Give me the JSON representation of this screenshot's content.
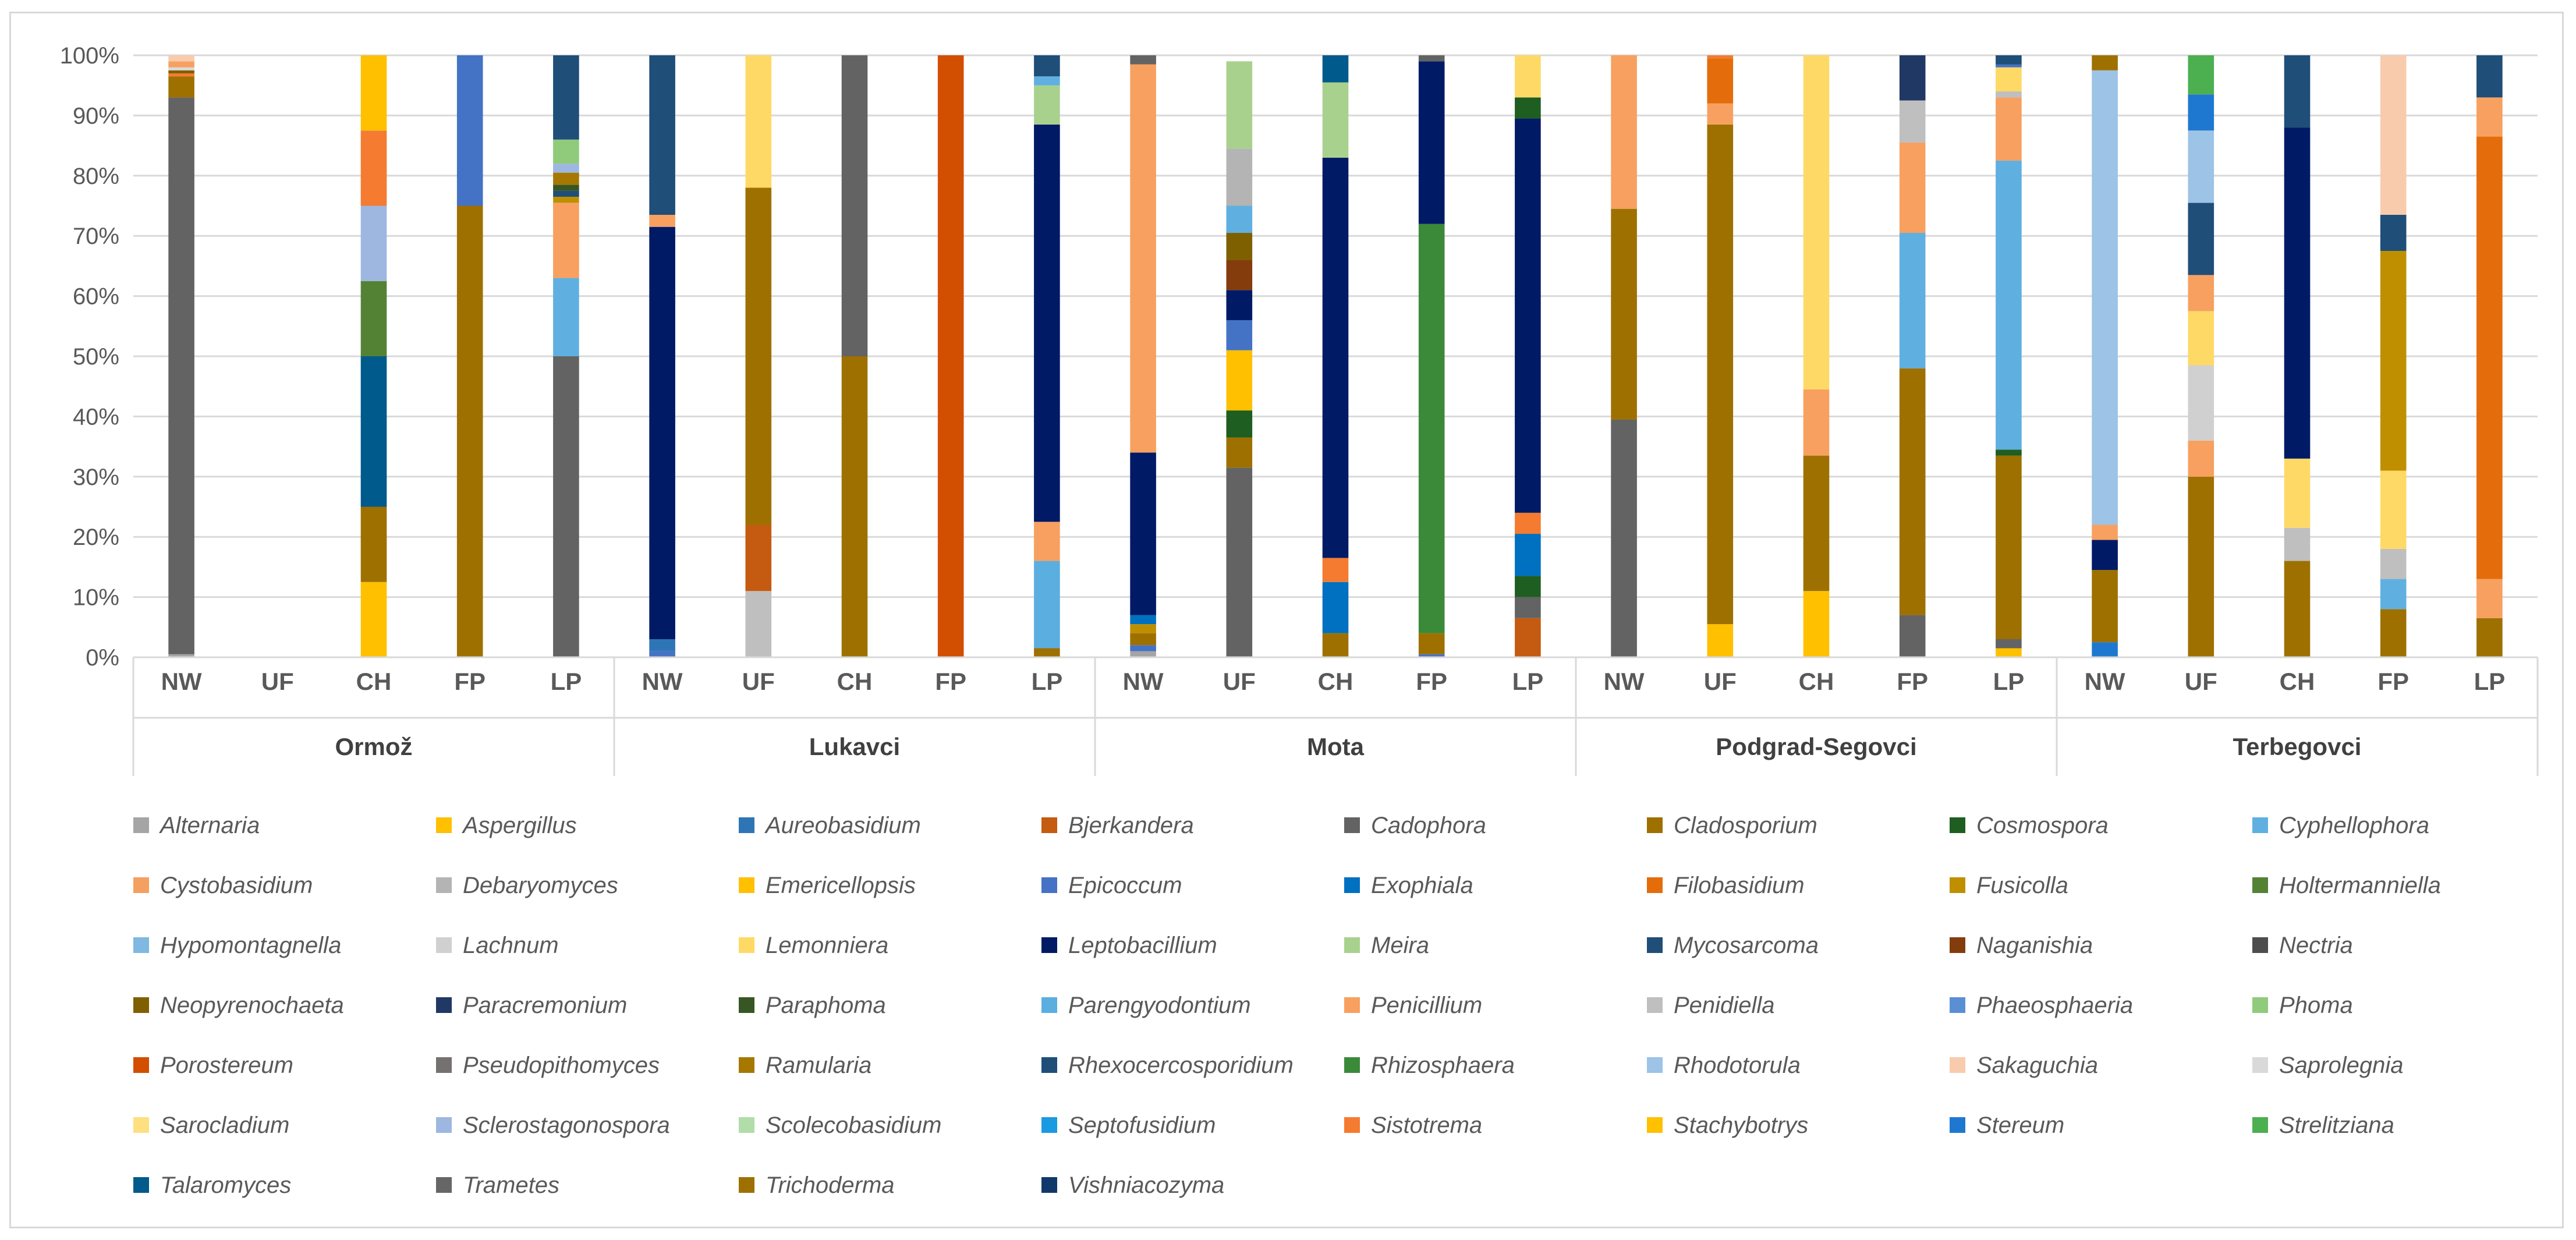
{
  "chart_data": {
    "type": "bar",
    "stacked": true,
    "normalized": true,
    "title": "",
    "xlabel": "",
    "ylabel": "",
    "ylim": [
      0,
      100
    ],
    "y_tick_labels": [
      "0%",
      "10%",
      "20%",
      "30%",
      "40%",
      "50%",
      "60%",
      "70%",
      "80%",
      "90%",
      "100%"
    ],
    "grid": true,
    "legend_position": "bottom",
    "sites": [
      "Ormož",
      "Lukavci",
      "Mota",
      "Podgrad-Segovci",
      "Terbegovci"
    ],
    "categories": [
      "NW",
      "UF",
      "CH",
      "FP",
      "LP"
    ],
    "genera": [
      {
        "name": "Alternaria",
        "color": "#A5A5A5"
      },
      {
        "name": "Aspergillus",
        "color": "#FFC000"
      },
      {
        "name": "Aureobasidium",
        "color": "#2E75B6"
      },
      {
        "name": "Bjerkandera",
        "color": "#C55A11"
      },
      {
        "name": "Cadophora",
        "color": "#636363"
      },
      {
        "name": "Cladosporium",
        "color": "#9E7000"
      },
      {
        "name": "Cosmospora",
        "color": "#1E5E20"
      },
      {
        "name": "Cyphellophora",
        "color": "#5FB0E0"
      },
      {
        "name": "Cystobasidium",
        "color": "#F4A060"
      },
      {
        "name": "Debaryomyces",
        "color": "#B4B4B4"
      },
      {
        "name": "Emericellopsis",
        "color": "#FFC000"
      },
      {
        "name": "Epicoccum",
        "color": "#4472C4"
      },
      {
        "name": "Exophiala",
        "color": "#0070C0"
      },
      {
        "name": "Filobasidium",
        "color": "#E46C0A"
      },
      {
        "name": "Fusicolla",
        "color": "#BF8F00"
      },
      {
        "name": "Holtermanniella",
        "color": "#548235"
      },
      {
        "name": "Hypomontagnella",
        "color": "#7FB8E0"
      },
      {
        "name": "Lachnum",
        "color": "#D0D0D0"
      },
      {
        "name": "Lemonniera",
        "color": "#FFD966"
      },
      {
        "name": "Leptobacillium",
        "color": "#001A66"
      },
      {
        "name": "Meira",
        "color": "#A9D18E"
      },
      {
        "name": "Mycosarcoma",
        "color": "#1F4E79"
      },
      {
        "name": "Naganishia",
        "color": "#843C0C"
      },
      {
        "name": "Nectria",
        "color": "#4D4D4D"
      },
      {
        "name": "Neopyrenochaeta",
        "color": "#7F6000"
      },
      {
        "name": "Paracremonium",
        "color": "#203864"
      },
      {
        "name": "Paraphoma",
        "color": "#375623"
      },
      {
        "name": "Parengyodontium",
        "color": "#5BAEE0"
      },
      {
        "name": "Penicillium",
        "color": "#F8A060"
      },
      {
        "name": "Penidiella",
        "color": "#BFBFBF"
      },
      {
        "name": "Phaeosphaeria",
        "color": "#5B8FD4"
      },
      {
        "name": "Phoma",
        "color": "#8FCB7B"
      },
      {
        "name": "Porostereum",
        "color": "#D24E00"
      },
      {
        "name": "Pseudopithomyces",
        "color": "#767171"
      },
      {
        "name": "Ramularia",
        "color": "#A67800"
      },
      {
        "name": "Rhexocercosporidium",
        "color": "#1F4E79"
      },
      {
        "name": "Rhizosphaera",
        "color": "#3A8A3A"
      },
      {
        "name": "Rhodotorula",
        "color": "#9DC3E6"
      },
      {
        "name": "Sakaguchia",
        "color": "#F8CBAD"
      },
      {
        "name": "Saprolegnia",
        "color": "#D9D9D9"
      },
      {
        "name": "Sarocladium",
        "color": "#FFE080"
      },
      {
        "name": "Sclerostagonospora",
        "color": "#9DB7E0"
      },
      {
        "name": "Scolecobasidium",
        "color": "#B0DDA8"
      },
      {
        "name": "Septofusidium",
        "color": "#1A9AE0"
      },
      {
        "name": "Sistotrema",
        "color": "#F47B30"
      },
      {
        "name": "Stachybotrys",
        "color": "#FFC000"
      },
      {
        "name": "Stereum",
        "color": "#1F78D0"
      },
      {
        "name": "Strelitziana",
        "color": "#4CAF50"
      },
      {
        "name": "Talaromyces",
        "color": "#005A8C"
      },
      {
        "name": "Trametes",
        "color": "#666666"
      },
      {
        "name": "Trichoderma",
        "color": "#9E7000"
      },
      {
        "name": "Vishniacozyma",
        "color": "#10396B"
      }
    ],
    "bars": [
      {
        "site": "Ormož",
        "category": "NW",
        "segments": [
          [
            "Alternaria",
            0.5
          ],
          [
            "Cadophora",
            92.5
          ],
          [
            "Cladosporium",
            3.5
          ],
          [
            "Sistotrema",
            0.5
          ],
          [
            "Neopyrenochaeta",
            0.5
          ],
          [
            "Saprolegnia",
            0.5
          ],
          [
            "Penicillium",
            1
          ],
          [
            "Sakaguchia",
            1
          ]
        ]
      },
      {
        "site": "Ormož",
        "category": "UF",
        "segments": []
      },
      {
        "site": "Ormož",
        "category": "CH",
        "segments": [
          [
            "Aspergillus",
            12.5
          ],
          [
            "Cladosporium",
            12.5
          ],
          [
            "Talaromyces",
            25
          ],
          [
            "Holtermanniella",
            12.5
          ],
          [
            "Sclerostagonospora",
            12.5
          ],
          [
            "Sistotrema",
            12.5
          ],
          [
            "Aspergillus",
            12.5
          ]
        ]
      },
      {
        "site": "Ormož",
        "category": "FP",
        "segments": [
          [
            "Cladosporium",
            75
          ],
          [
            "Epicoccum",
            25
          ]
        ]
      },
      {
        "site": "Ormož",
        "category": "LP",
        "segments": [
          [
            "Cadophora",
            50
          ],
          [
            "Cyphellophora",
            13
          ],
          [
            "Penicillium",
            12.5
          ],
          [
            "Fusicolla",
            1
          ],
          [
            "Mycosarcoma",
            1
          ],
          [
            "Paraphoma",
            1
          ],
          [
            "Ramularia",
            2
          ],
          [
            "Sclerostagonospora",
            1.5
          ],
          [
            "Phoma",
            4
          ],
          [
            "Rhexocercosporidium",
            14
          ]
        ]
      },
      {
        "site": "Lukavci",
        "category": "NW",
        "segments": [
          [
            "Epicoccum",
            1
          ],
          [
            "Aureobasidium",
            2
          ],
          [
            "Leptobacillium",
            68.5
          ],
          [
            "Penicillium",
            2
          ],
          [
            "Mycosarcoma",
            26.5
          ]
        ]
      },
      {
        "site": "Lukavci",
        "category": "UF",
        "segments": [
          [
            "Penidiella",
            11
          ],
          [
            "Bjerkandera",
            11
          ],
          [
            "Cladosporium",
            56
          ],
          [
            "Lemonniera",
            22
          ]
        ]
      },
      {
        "site": "Lukavci",
        "category": "CH",
        "segments": [
          [
            "Cladosporium",
            50
          ],
          [
            "Cadophora",
            50
          ]
        ]
      },
      {
        "site": "Lukavci",
        "category": "FP",
        "segments": [
          [
            "Porostereum",
            100
          ]
        ]
      },
      {
        "site": "Lukavci",
        "category": "LP",
        "segments": [
          [
            "Cladosporium",
            1.5
          ],
          [
            "Parengyodontium",
            14.5
          ],
          [
            "Penicillium",
            6.5
          ],
          [
            "Leptobacillium",
            66
          ],
          [
            "Meira",
            6.5
          ],
          [
            "Cyphellophora",
            1.5
          ],
          [
            "Mycosarcoma",
            3.5
          ]
        ]
      },
      {
        "site": "Mota",
        "category": "NW",
        "segments": [
          [
            "Alternaria",
            1
          ],
          [
            "Epicoccum",
            1
          ],
          [
            "Cladosporium",
            2
          ],
          [
            "Fusicolla",
            1.5
          ],
          [
            "Exophiala",
            1.5
          ],
          [
            "Leptobacillium",
            27
          ],
          [
            "Penicillium",
            64.5
          ],
          [
            "Cadophora",
            1.5
          ]
        ]
      },
      {
        "site": "Mota",
        "category": "UF",
        "segments": [
          [
            "Cadophora",
            31.5
          ],
          [
            "Cladosporium",
            5
          ],
          [
            "Cosmospora",
            4.5
          ],
          [
            "Aspergillus",
            10
          ],
          [
            "Epicoccum",
            5
          ],
          [
            "Leptobacillium",
            5
          ],
          [
            "Naganishia",
            5
          ],
          [
            "Neopyrenochaeta",
            4.5
          ],
          [
            "Cyphellophora",
            4.5
          ],
          [
            "Debaryomyces",
            9.5
          ],
          [
            "Meira",
            14.5
          ]
        ]
      },
      {
        "site": "Mota",
        "category": "CH",
        "segments": [
          [
            "Cladosporium",
            4
          ],
          [
            "Exophiala",
            8.5
          ],
          [
            "Sistotrema",
            4
          ],
          [
            "Leptobacillium",
            66.5
          ],
          [
            "Meira",
            12.5
          ],
          [
            "Talaromyces",
            4.5
          ]
        ]
      },
      {
        "site": "Mota",
        "category": "FP",
        "segments": [
          [
            "Epicoccum",
            0.5
          ],
          [
            "Cladosporium",
            3.5
          ],
          [
            "Rhizosphaera",
            68
          ],
          [
            "Leptobacillium",
            27
          ],
          [
            "Cadophora",
            1
          ]
        ]
      },
      {
        "site": "Mota",
        "category": "LP",
        "segments": [
          [
            "Bjerkandera",
            6.5
          ],
          [
            "Cadophora",
            3.5
          ],
          [
            "Cosmospora",
            3.5
          ],
          [
            "Exophiala",
            7
          ],
          [
            "Sistotrema",
            3.5
          ],
          [
            "Leptobacillium",
            65.5
          ],
          [
            "Cosmospora",
            3.5
          ],
          [
            "Lemonniera",
            7
          ]
        ]
      },
      {
        "site": "Podgrad-Segovci",
        "category": "NW",
        "segments": [
          [
            "Cadophora",
            39.5
          ],
          [
            "Cladosporium",
            35
          ],
          [
            "Penicillium",
            25.5
          ]
        ]
      },
      {
        "site": "Podgrad-Segovci",
        "category": "UF",
        "segments": [
          [
            "Aspergillus",
            5.5
          ],
          [
            "Cladosporium",
            83
          ],
          [
            "Penicillium",
            3.5
          ],
          [
            "Filobasidium",
            7.5
          ],
          [
            "Sistotrema",
            0.5
          ]
        ]
      },
      {
        "site": "Podgrad-Segovci",
        "category": "CH",
        "segments": [
          [
            "Aspergillus",
            11
          ],
          [
            "Cladosporium",
            22.5
          ],
          [
            "Penicillium",
            11
          ],
          [
            "Lemonniera",
            55.5
          ]
        ]
      },
      {
        "site": "Podgrad-Segovci",
        "category": "FP",
        "segments": [
          [
            "Cadophora",
            7
          ],
          [
            "Cladosporium",
            41
          ],
          [
            "Cyphellophora",
            22.5
          ],
          [
            "Penicillium",
            15
          ],
          [
            "Penidiella",
            7
          ],
          [
            "Paracremonium",
            7.5
          ]
        ]
      },
      {
        "site": "Podgrad-Segovci",
        "category": "LP",
        "segments": [
          [
            "Aspergillus",
            1.5
          ],
          [
            "Cadophora",
            1.5
          ],
          [
            "Cladosporium",
            30.5
          ],
          [
            "Cosmospora",
            1
          ],
          [
            "Cyphellophora",
            48
          ],
          [
            "Penicillium",
            10.5
          ],
          [
            "Penidiella",
            1
          ],
          [
            "Lemonniera",
            4
          ],
          [
            "Epicoccum",
            0.5
          ],
          [
            "Mycosarcoma",
            1.5
          ]
        ]
      },
      {
        "site": "Terbegovci",
        "category": "NW",
        "segments": [
          [
            "Stereum",
            2.5
          ],
          [
            "Cladosporium",
            12
          ],
          [
            "Leptobacillium",
            5
          ],
          [
            "Penicillium",
            2.5
          ],
          [
            "Rhodotorula",
            75.5
          ],
          [
            "Cladosporium",
            2.5
          ]
        ]
      },
      {
        "site": "Terbegovci",
        "category": "UF",
        "segments": [
          [
            "Cladosporium",
            30
          ],
          [
            "Penicillium",
            6
          ],
          [
            "Lachnum",
            12.5
          ],
          [
            "Lemonniera",
            9
          ],
          [
            "Penicillium",
            6
          ],
          [
            "Mycosarcoma",
            12
          ],
          [
            "Rhodotorula",
            12
          ],
          [
            "Stereum",
            6
          ],
          [
            "Strelitziana",
            6.5
          ]
        ]
      },
      {
        "site": "Terbegovci",
        "category": "CH",
        "segments": [
          [
            "Cladosporium",
            16
          ],
          [
            "Penidiella",
            5.5
          ],
          [
            "Lemonniera",
            11.5
          ],
          [
            "Leptobacillium",
            55
          ],
          [
            "Mycosarcoma",
            12
          ]
        ]
      },
      {
        "site": "Terbegovci",
        "category": "FP",
        "segments": [
          [
            "Cladosporium",
            8
          ],
          [
            "Cyphellophora",
            5
          ],
          [
            "Penidiella",
            5
          ],
          [
            "Lemonniera",
            13
          ],
          [
            "Fusicolla",
            36.5
          ],
          [
            "Mycosarcoma",
            6
          ],
          [
            "Sakaguchia",
            26.5
          ]
        ]
      },
      {
        "site": "Terbegovci",
        "category": "LP",
        "segments": [
          [
            "Cladosporium",
            6.5
          ],
          [
            "Penicillium",
            6.5
          ],
          [
            "Filobasidium",
            73.5
          ],
          [
            "Penicillium",
            6.5
          ],
          [
            "Mycosarcoma",
            7
          ]
        ]
      }
    ]
  }
}
